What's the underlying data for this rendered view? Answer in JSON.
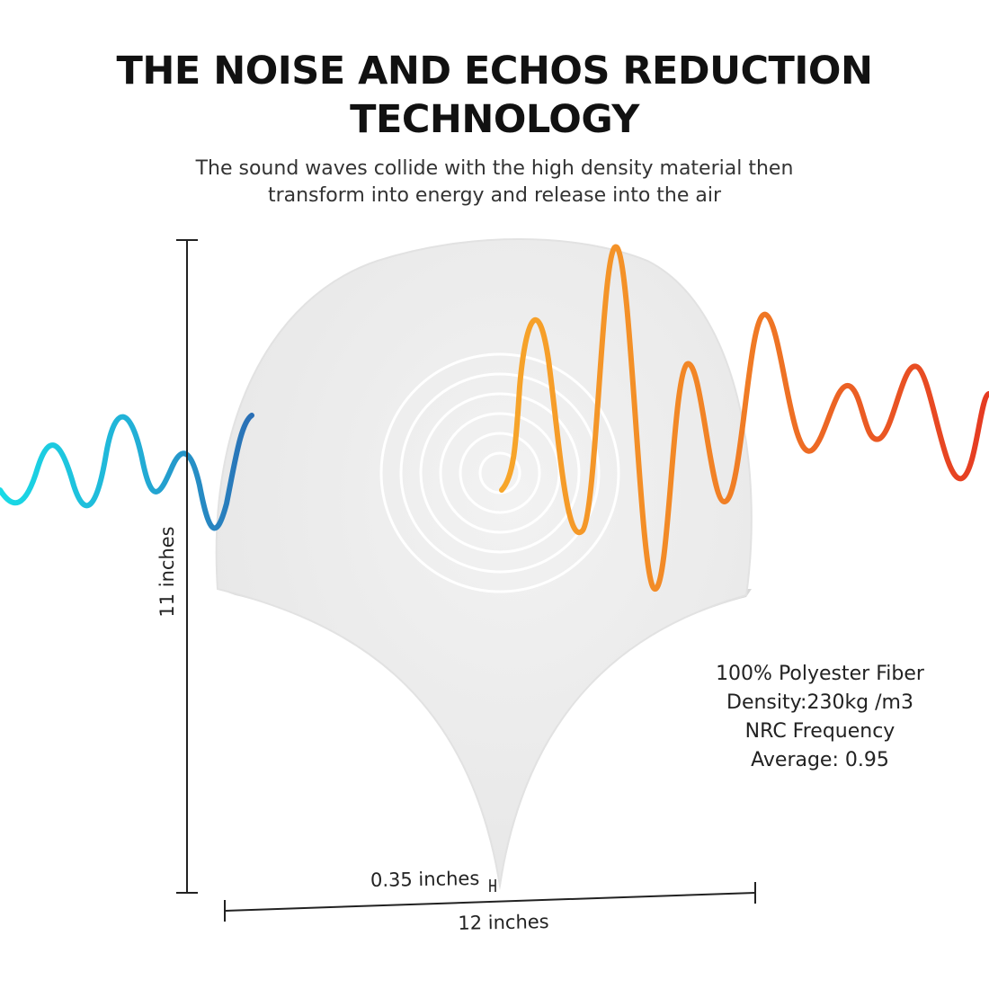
{
  "headline": {
    "line1": "THE NOISE AND ECHOS REDUCTION",
    "line2": "TECHNOLOGY"
  },
  "subtitle": {
    "line1": "The sound waves collide with the high density material then",
    "line2": "transform into energy and release into the air"
  },
  "specs": {
    "material": "100% Polyester Fiber",
    "density": "Density:230kg /m3",
    "nrc_label": "NRC Frequency",
    "nrc_average": "Average: 0.95"
  },
  "dimensions": {
    "height": "11 inches",
    "thickness": "0.35 inches",
    "width": "12 inches"
  },
  "colors": {
    "incoming_wave_start": "#19dbe6",
    "incoming_wave_end": "#2a6fb5",
    "reflected_wave_start": "#f5a623",
    "reflected_wave_end": "#e53a22",
    "panel": "#eeeeee",
    "panel_edge": "#dcdcdc"
  },
  "icons": {
    "panel": "fish-scale-acoustic-panel-icon"
  }
}
